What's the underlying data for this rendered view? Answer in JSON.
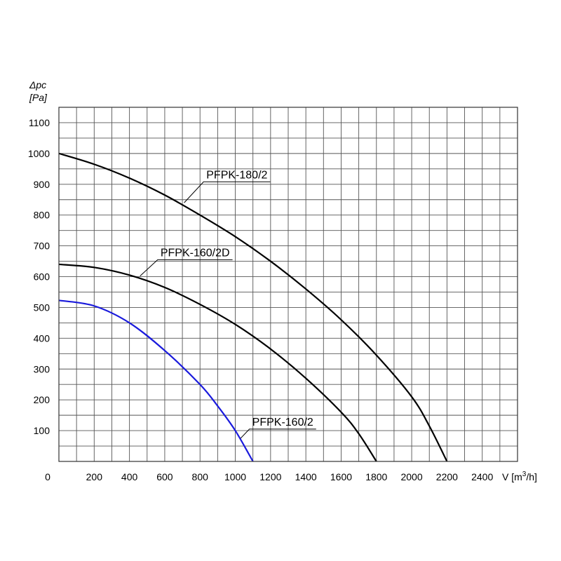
{
  "chart_data": {
    "type": "line",
    "title": "",
    "ylabel_symbol": "Δpc",
    "ylabel_unit": "[Pa]",
    "xlabel_prefix": "V [m",
    "xlabel_sup": "3",
    "xlabel_suffix": "/h]",
    "xlim": [
      0,
      2600
    ],
    "ylim": [
      0,
      1150
    ],
    "x_grid_step": 100,
    "y_grid_step": 50,
    "grid": true,
    "origin_label": "0",
    "x_tick_values": [
      200,
      400,
      600,
      800,
      1000,
      1200,
      1400,
      1600,
      1800,
      2000,
      2200,
      2400
    ],
    "x_tick_labels": [
      "200",
      "400",
      "600",
      "800",
      "1000",
      "1200",
      "1400",
      "1600",
      "1800",
      "2000",
      "2200",
      "2400"
    ],
    "y_tick_values": [
      100,
      200,
      300,
      400,
      500,
      600,
      700,
      800,
      900,
      1000,
      1100
    ],
    "y_tick_labels": [
      "100",
      "200",
      "300",
      "400",
      "500",
      "600",
      "700",
      "800",
      "900",
      "1000",
      "1100"
    ],
    "series": [
      {
        "name": "PFPK-180/2",
        "color": "#000000",
        "x": [
          0,
          200,
          400,
          600,
          800,
          1000,
          1200,
          1400,
          1600,
          1800,
          2000,
          2100,
          2200
        ],
        "y": [
          1000,
          965,
          920,
          865,
          800,
          730,
          650,
          560,
          460,
          345,
          210,
          115,
          0
        ]
      },
      {
        "name": "PFPK-160/2D",
        "color": "#000000",
        "x": [
          0,
          200,
          400,
          600,
          800,
          1000,
          1200,
          1400,
          1600,
          1700,
          1800
        ],
        "y": [
          640,
          630,
          605,
          565,
          510,
          445,
          365,
          270,
          160,
          90,
          0
        ]
      },
      {
        "name": "PFPK-160/2",
        "color": "#1a1adc",
        "x": [
          0,
          200,
          400,
          600,
          800,
          900,
          1000,
          1100
        ],
        "y": [
          523,
          505,
          450,
          360,
          250,
          180,
          100,
          0
        ]
      }
    ],
    "annotations": [
      {
        "series": "PFPK-180/2",
        "text": "PFPK-180/2",
        "point": [
          710,
          840
        ],
        "label_at": [
          820,
          908
        ]
      },
      {
        "series": "PFPK-160/2D",
        "text": "PFPK-160/2D",
        "point": [
          460,
          602
        ],
        "label_at": [
          560,
          655
        ]
      },
      {
        "series": "PFPK-160/2",
        "text": "PFPK-160/2",
        "point": [
          1030,
          75
        ],
        "label_at": [
          1080,
          105
        ]
      }
    ]
  }
}
